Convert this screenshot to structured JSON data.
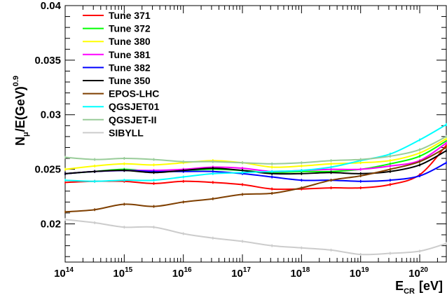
{
  "chart_data": {
    "type": "line",
    "title": "",
    "xlabel": {
      "main": "E",
      "sub": "CR",
      "unit": "[eV]"
    },
    "ylabel": {
      "prefix": "N",
      "sub": "μ",
      "middle": "/E(GeV)",
      "sup": "0.9"
    },
    "x_scale": "log",
    "x_log_range": [
      14,
      20.45
    ],
    "ylim": [
      0.0165,
      0.04
    ],
    "x_ticks": [
      {
        "log": 14,
        "base": "10",
        "exp": "14"
      },
      {
        "log": 15,
        "base": "10",
        "exp": "15"
      },
      {
        "log": 16,
        "base": "10",
        "exp": "16"
      },
      {
        "log": 17,
        "base": "10",
        "exp": "17"
      },
      {
        "log": 18,
        "base": "10",
        "exp": "18"
      },
      {
        "log": 19,
        "base": "10",
        "exp": "19"
      },
      {
        "log": 20,
        "base": "10",
        "exp": "20"
      }
    ],
    "y_ticks": [
      {
        "value": 0.02,
        "label": "0.02"
      },
      {
        "value": 0.025,
        "label": "0.025"
      },
      {
        "value": 0.03,
        "label": "0.03"
      },
      {
        "value": 0.035,
        "label": "0.035"
      },
      {
        "value": 0.04,
        "label": "0.04"
      }
    ],
    "x_log": [
      14,
      14.5,
      15,
      15.5,
      16,
      16.5,
      17,
      17.5,
      18,
      18.5,
      19,
      19.5,
      20,
      20.45
    ],
    "legend_position": "top-left",
    "series": [
      {
        "name": "Tune 371",
        "color": "#ff0000",
        "values": [
          0.0238,
          0.0239,
          0.0239,
          0.0237,
          0.0239,
          0.0238,
          0.0236,
          0.0232,
          0.0232,
          0.0233,
          0.0233,
          0.0236,
          0.0245,
          0.0272
        ]
      },
      {
        "name": "Tune 372",
        "color": "#00ff00",
        "values": [
          0.0246,
          0.0248,
          0.025,
          0.0248,
          0.0249,
          0.025,
          0.0249,
          0.0247,
          0.0248,
          0.0248,
          0.025,
          0.0255,
          0.0262,
          0.0276
        ]
      },
      {
        "name": "Tune 380",
        "color": "#ffff00",
        "values": [
          0.025,
          0.0253,
          0.0255,
          0.0254,
          0.0256,
          0.0258,
          0.0256,
          0.0252,
          0.0253,
          0.0255,
          0.0256,
          0.0258,
          0.0265,
          0.0278
        ]
      },
      {
        "name": "Tune 381",
        "color": "#ff00ff",
        "values": [
          0.0246,
          0.0248,
          0.0249,
          0.0249,
          0.025,
          0.0252,
          0.0251,
          0.0248,
          0.0249,
          0.025,
          0.025,
          0.0253,
          0.0258,
          0.0274
        ]
      },
      {
        "name": "Tune 382",
        "color": "#0000ff",
        "values": [
          0.0246,
          0.0248,
          0.0249,
          0.0248,
          0.0248,
          0.0248,
          0.0246,
          0.0243,
          0.024,
          0.024,
          0.0239,
          0.024,
          0.0244,
          0.0256
        ]
      },
      {
        "name": "Tune 350",
        "color": "#000000",
        "values": [
          0.0246,
          0.0248,
          0.0249,
          0.0247,
          0.0249,
          0.0251,
          0.0249,
          0.0246,
          0.0246,
          0.0247,
          0.0246,
          0.0248,
          0.0254,
          0.0267
        ]
      },
      {
        "name": "EPOS-LHC",
        "color": "#7f3f00",
        "values": [
          0.0211,
          0.0213,
          0.0218,
          0.0216,
          0.022,
          0.0223,
          0.0227,
          0.0228,
          0.0233,
          0.024,
          0.0244,
          0.025,
          0.0257,
          0.027
        ]
      },
      {
        "name": "QGSJET01",
        "color": "#00ffff",
        "values": [
          0.024,
          0.0239,
          0.024,
          0.024,
          0.0243,
          0.0246,
          0.0247,
          0.0248,
          0.0249,
          0.0252,
          0.0258,
          0.0264,
          0.0277,
          0.0291
        ]
      },
      {
        "name": "QGSJET-II",
        "color": "#99cc99",
        "values": [
          0.0261,
          0.0259,
          0.026,
          0.0259,
          0.0257,
          0.0257,
          0.0256,
          0.0255,
          0.0256,
          0.0258,
          0.0259,
          0.0262,
          0.0268,
          0.028
        ]
      },
      {
        "name": "SIBYLL",
        "color": "#cccccc",
        "values": [
          0.0204,
          0.0201,
          0.0197,
          0.0197,
          0.0191,
          0.0187,
          0.0184,
          0.018,
          0.0178,
          0.0176,
          0.0172,
          0.0173,
          0.0175,
          0.0182
        ]
      }
    ]
  }
}
